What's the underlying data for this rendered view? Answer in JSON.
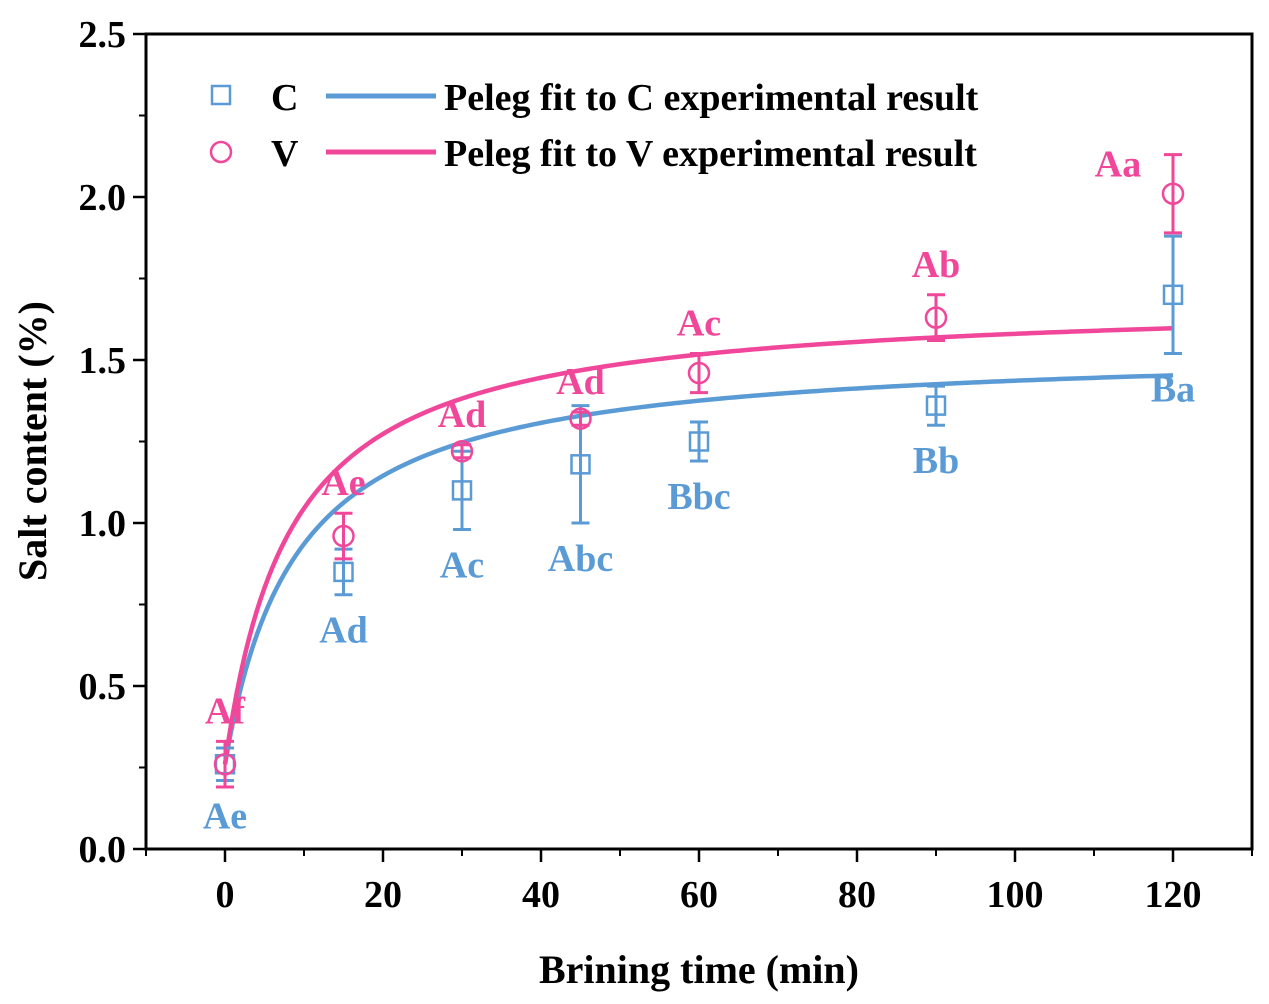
{
  "chart_data": {
    "type": "scatter",
    "title": "",
    "xlabel": "Brining time (min)",
    "ylabel": "Salt content (%)",
    "xlim": [
      -10,
      130
    ],
    "ylim": [
      0,
      2.5
    ],
    "xticks": [
      0,
      20,
      40,
      60,
      80,
      100,
      120
    ],
    "xtick_labels": [
      "0",
      "20",
      "40",
      "60",
      "80",
      "100",
      "120"
    ],
    "yticks": [
      0,
      0.5,
      1,
      1.5,
      2,
      2.5
    ],
    "ytick_labels": [
      "0.0",
      "0.5",
      "1.0",
      "1.5",
      "2.0",
      "2.5"
    ],
    "grid": false,
    "legend_position": "top-left",
    "series": [
      {
        "name": "C",
        "marker": "square",
        "color": "#5B9BD5",
        "x": [
          0,
          15,
          30,
          45,
          60,
          90,
          120
        ],
        "y": [
          0.26,
          0.85,
          1.1,
          1.18,
          1.25,
          1.36,
          1.7
        ],
        "error": [
          0.05,
          0.07,
          0.12,
          0.18,
          0.06,
          0.06,
          0.18
        ],
        "letters": [
          "Ae",
          "Ad",
          "Ac",
          "Abc",
          "Bbc",
          "Bb",
          "Ba"
        ],
        "letter_position": "below"
      },
      {
        "name": "V",
        "marker": "circle",
        "color": "#F0479A",
        "x": [
          0,
          15,
          30,
          45,
          60,
          90,
          120
        ],
        "y": [
          0.26,
          0.96,
          1.22,
          1.32,
          1.46,
          1.63,
          2.01
        ],
        "error": [
          0.07,
          0.07,
          0.02,
          0.02,
          0.06,
          0.07,
          0.12
        ],
        "letters": [
          "Af",
          "Ae",
          "Ad",
          "Ad",
          "Ac",
          "Ab",
          "Aa"
        ],
        "letter_position": "above"
      }
    ],
    "fits": [
      {
        "name": "Peleg fit to C experimental result",
        "color": "#5B9BD5",
        "model": "Peleg",
        "m0": 0.26,
        "k1": 7.0,
        "k2": 0.78,
        "x_range": [
          0,
          120
        ]
      },
      {
        "name": "Peleg fit to V experimental result",
        "color": "#F0479A",
        "model": "Peleg",
        "m0": 0.26,
        "k1": 5.74,
        "k2": 0.7,
        "x_range": [
          0,
          120
        ]
      }
    ]
  }
}
